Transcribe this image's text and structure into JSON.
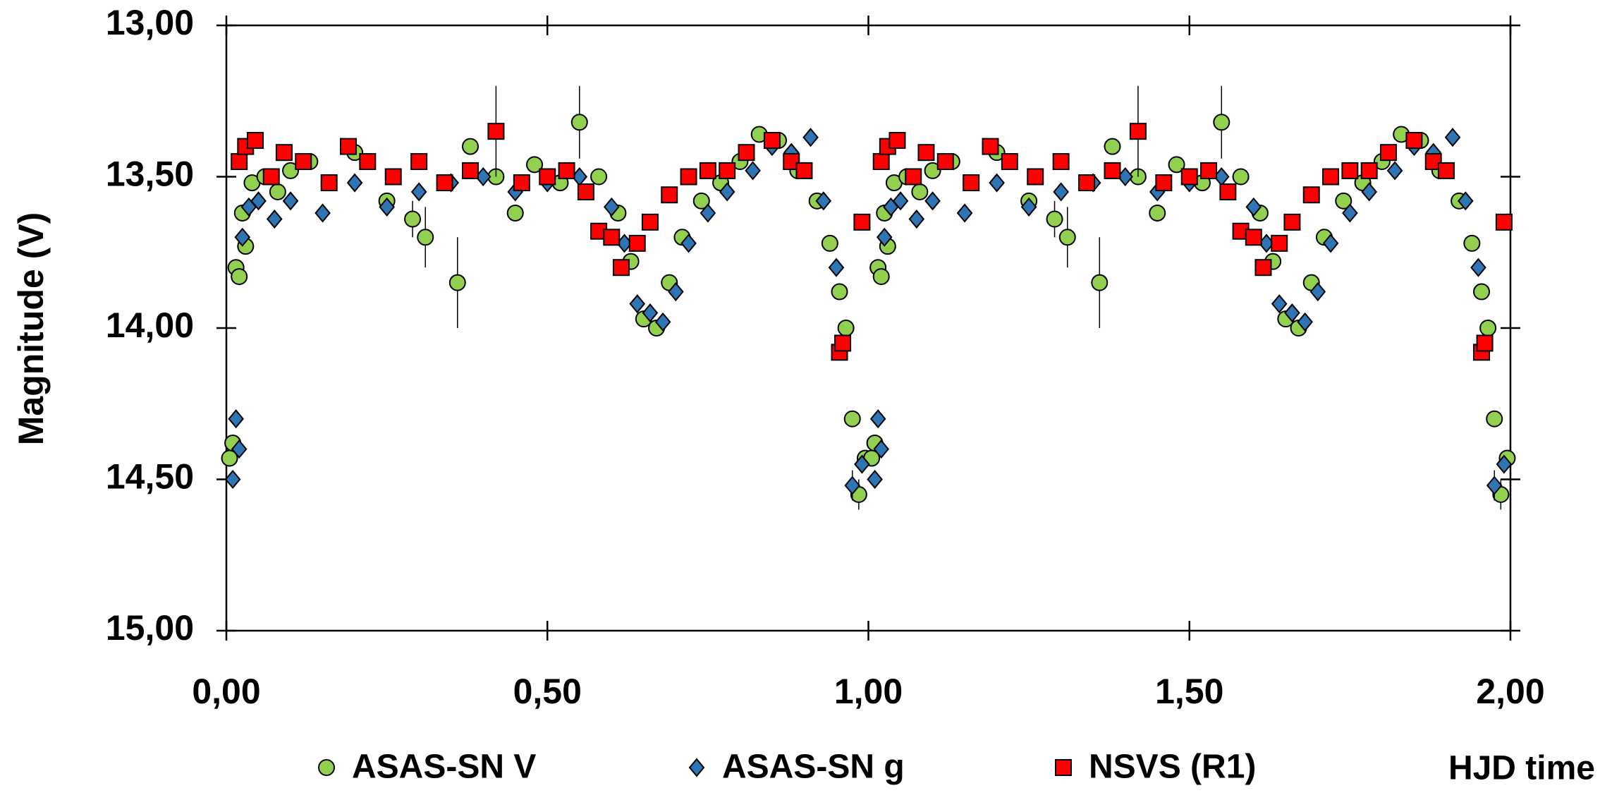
{
  "chart_data": {
    "type": "scatter",
    "ylabel": "Magnitude (V)",
    "xlabel": "HJD time",
    "xlim": [
      0,
      2
    ],
    "ylim": [
      13,
      15
    ],
    "y_inverted": true,
    "xticks": [
      {
        "value": 0,
        "label": "0,00"
      },
      {
        "value": 0.5,
        "label": "0,50"
      },
      {
        "value": 1,
        "label": "1,00"
      },
      {
        "value": 1.5,
        "label": "1,50"
      },
      {
        "value": 2,
        "label": "2,00"
      }
    ],
    "yticks": [
      {
        "value": 13,
        "label": "13,00"
      },
      {
        "value": 13.5,
        "label": "13,50"
      },
      {
        "value": 14,
        "label": "14,00"
      },
      {
        "value": 14.5,
        "label": "14,50"
      },
      {
        "value": 15,
        "label": "15,00"
      }
    ],
    "legend": "bottom",
    "series": [
      {
        "name": "ASAS-SN V",
        "color": "#92d050",
        "marker": "circle",
        "x": [
          0.005,
          0.01,
          0.015,
          0.02,
          0.025,
          0.03,
          0.04,
          0.06,
          0.08,
          0.1,
          0.13,
          0.16,
          0.2,
          0.25,
          0.29,
          0.31,
          0.36,
          0.38,
          0.42,
          0.45,
          0.48,
          0.52,
          0.55,
          0.58,
          0.61,
          0.63,
          0.65,
          0.67,
          0.69,
          0.71,
          0.74,
          0.77,
          0.8,
          0.83,
          0.86,
          0.89,
          0.92,
          0.94,
          0.955,
          0.965,
          0.975,
          0.985,
          0.995,
          1.005,
          1.01,
          1.015,
          1.02,
          1.025,
          1.03,
          1.04,
          1.06,
          1.08,
          1.1,
          1.13,
          1.16,
          1.2,
          1.25,
          1.29,
          1.31,
          1.36,
          1.38,
          1.42,
          1.45,
          1.48,
          1.52,
          1.55,
          1.58,
          1.61,
          1.63,
          1.65,
          1.67,
          1.69,
          1.71,
          1.74,
          1.77,
          1.8,
          1.83,
          1.86,
          1.89,
          1.92,
          1.94,
          1.955,
          1.965,
          1.975,
          1.985,
          1.995
        ],
        "values": [
          14.43,
          14.38,
          13.8,
          13.83,
          13.62,
          13.73,
          13.52,
          13.5,
          13.55,
          13.48,
          13.45,
          13.52,
          13.42,
          13.58,
          13.64,
          13.7,
          13.85,
          13.4,
          13.5,
          13.62,
          13.46,
          13.52,
          13.32,
          13.5,
          13.62,
          13.78,
          13.97,
          14.0,
          13.85,
          13.7,
          13.58,
          13.52,
          13.45,
          13.36,
          13.38,
          13.48,
          13.58,
          13.72,
          13.88,
          14.0,
          14.3,
          14.55,
          14.43,
          14.43,
          14.38,
          13.8,
          13.83,
          13.62,
          13.73,
          13.52,
          13.5,
          13.55,
          13.48,
          13.45,
          13.52,
          13.42,
          13.58,
          13.64,
          13.7,
          13.85,
          13.4,
          13.5,
          13.62,
          13.46,
          13.52,
          13.32,
          13.5,
          13.62,
          13.78,
          13.97,
          14.0,
          13.85,
          13.7,
          13.58,
          13.52,
          13.45,
          13.36,
          13.38,
          13.48,
          13.58,
          13.72,
          13.88,
          14.0,
          14.3,
          14.55,
          14.43
        ],
        "errors": [
          0.02,
          0.02,
          0.02,
          0.02,
          0.02,
          0.02,
          0.02,
          0.02,
          0.02,
          0.02,
          0.02,
          0.02,
          0.02,
          0.02,
          0.06,
          0.1,
          0.15,
          0.02,
          0.02,
          0.02,
          0.02,
          0.02,
          0.12,
          0.02,
          0.02,
          0.02,
          0.02,
          0.02,
          0.02,
          0.02,
          0.02,
          0.02,
          0.02,
          0.02,
          0.02,
          0.02,
          0.02,
          0.02,
          0.02,
          0.02,
          0.02,
          0.05,
          0.02,
          0.02,
          0.02,
          0.02,
          0.02,
          0.02,
          0.02,
          0.02,
          0.02,
          0.02,
          0.02,
          0.02,
          0.02,
          0.02,
          0.02,
          0.06,
          0.1,
          0.15,
          0.02,
          0.02,
          0.02,
          0.02,
          0.02,
          0.12,
          0.02,
          0.02,
          0.02,
          0.02,
          0.02,
          0.02,
          0.02,
          0.02,
          0.02,
          0.02,
          0.02,
          0.02,
          0.02,
          0.02,
          0.02,
          0.02,
          0.02,
          0.02,
          0.05,
          0.02
        ]
      },
      {
        "name": "ASAS-SN g",
        "color": "#2e75b6",
        "marker": "diamond",
        "x": [
          0.01,
          0.015,
          0.02,
          0.025,
          0.035,
          0.05,
          0.075,
          0.1,
          0.15,
          0.2,
          0.25,
          0.3,
          0.35,
          0.4,
          0.45,
          0.5,
          0.55,
          0.6,
          0.62,
          0.64,
          0.66,
          0.68,
          0.7,
          0.72,
          0.75,
          0.78,
          0.82,
          0.85,
          0.88,
          0.91,
          0.93,
          0.95,
          0.975,
          0.99,
          1.01,
          1.015,
          1.02,
          1.025,
          1.035,
          1.05,
          1.075,
          1.1,
          1.15,
          1.2,
          1.25,
          1.3,
          1.35,
          1.4,
          1.45,
          1.5,
          1.55,
          1.6,
          1.62,
          1.64,
          1.66,
          1.68,
          1.7,
          1.72,
          1.75,
          1.78,
          1.82,
          1.85,
          1.88,
          1.91,
          1.93,
          1.95,
          1.975,
          1.99
        ],
        "values": [
          14.5,
          14.3,
          14.4,
          13.7,
          13.6,
          13.58,
          13.64,
          13.58,
          13.62,
          13.52,
          13.6,
          13.55,
          13.52,
          13.5,
          13.55,
          13.52,
          13.5,
          13.6,
          13.72,
          13.92,
          13.95,
          13.98,
          13.88,
          13.72,
          13.62,
          13.55,
          13.48,
          13.4,
          13.42,
          13.37,
          13.58,
          13.8,
          14.52,
          14.45,
          14.5,
          14.3,
          14.4,
          13.7,
          13.6,
          13.58,
          13.64,
          13.58,
          13.62,
          13.52,
          13.6,
          13.55,
          13.52,
          13.5,
          13.55,
          13.52,
          13.5,
          13.6,
          13.72,
          13.92,
          13.95,
          13.98,
          13.88,
          13.72,
          13.62,
          13.55,
          13.48,
          13.4,
          13.42,
          13.37,
          13.58,
          13.8,
          14.52,
          14.45
        ],
        "errors": [
          0.02,
          0.02,
          0.02,
          0.02,
          0.02,
          0.02,
          0.02,
          0.02,
          0.02,
          0.02,
          0.02,
          0.02,
          0.02,
          0.02,
          0.02,
          0.02,
          0.02,
          0.02,
          0.02,
          0.02,
          0.02,
          0.02,
          0.02,
          0.02,
          0.02,
          0.02,
          0.02,
          0.02,
          0.02,
          0.02,
          0.02,
          0.02,
          0.05,
          0.02,
          0.02,
          0.02,
          0.02,
          0.02,
          0.02,
          0.02,
          0.02,
          0.02,
          0.02,
          0.02,
          0.02,
          0.02,
          0.02,
          0.02,
          0.02,
          0.02,
          0.02,
          0.02,
          0.02,
          0.02,
          0.02,
          0.02,
          0.02,
          0.02,
          0.02,
          0.02,
          0.02,
          0.02,
          0.02,
          0.02,
          0.02,
          0.02,
          0.05,
          0.02
        ]
      },
      {
        "name": "NSVS (R1)",
        "color": "#ff0000",
        "marker": "square",
        "x": [
          0.02,
          0.03,
          0.045,
          0.07,
          0.09,
          0.12,
          0.16,
          0.19,
          0.22,
          0.26,
          0.3,
          0.34,
          0.38,
          0.42,
          0.46,
          0.5,
          0.53,
          0.56,
          0.58,
          0.6,
          0.615,
          0.64,
          0.66,
          0.69,
          0.72,
          0.75,
          0.78,
          0.81,
          0.85,
          0.88,
          0.9,
          0.955,
          0.96,
          0.99,
          1.02,
          1.03,
          1.045,
          1.07,
          1.09,
          1.12,
          1.16,
          1.19,
          1.22,
          1.26,
          1.3,
          1.34,
          1.38,
          1.42,
          1.46,
          1.5,
          1.53,
          1.56,
          1.58,
          1.6,
          1.615,
          1.64,
          1.66,
          1.69,
          1.72,
          1.75,
          1.78,
          1.81,
          1.85,
          1.88,
          1.9,
          1.955,
          1.96,
          1.99
        ],
        "values": [
          13.45,
          13.4,
          13.38,
          13.5,
          13.42,
          13.45,
          13.52,
          13.4,
          13.45,
          13.5,
          13.45,
          13.52,
          13.48,
          13.35,
          13.52,
          13.5,
          13.48,
          13.55,
          13.68,
          13.7,
          13.8,
          13.72,
          13.65,
          13.56,
          13.5,
          13.48,
          13.48,
          13.42,
          13.38,
          13.45,
          13.48,
          14.08,
          14.05,
          13.65,
          13.45,
          13.4,
          13.38,
          13.5,
          13.42,
          13.45,
          13.52,
          13.4,
          13.45,
          13.5,
          13.45,
          13.52,
          13.48,
          13.35,
          13.52,
          13.5,
          13.48,
          13.55,
          13.68,
          13.7,
          13.8,
          13.72,
          13.65,
          13.56,
          13.5,
          13.48,
          13.48,
          13.42,
          13.38,
          13.45,
          13.48,
          14.08,
          14.05,
          13.65
        ],
        "errors": [
          0.02,
          0.02,
          0.02,
          0.02,
          0.02,
          0.02,
          0.02,
          0.02,
          0.02,
          0.02,
          0.02,
          0.02,
          0.02,
          0.15,
          0.02,
          0.02,
          0.02,
          0.02,
          0.02,
          0.02,
          0.02,
          0.02,
          0.02,
          0.02,
          0.02,
          0.02,
          0.02,
          0.02,
          0.02,
          0.02,
          0.02,
          0.02,
          0.02,
          0.02,
          0.02,
          0.02,
          0.02,
          0.02,
          0.02,
          0.02,
          0.02,
          0.02,
          0.02,
          0.02,
          0.02,
          0.02,
          0.02,
          0.15,
          0.02,
          0.02,
          0.02,
          0.02,
          0.02,
          0.02,
          0.02,
          0.02,
          0.02,
          0.02,
          0.02,
          0.02,
          0.02,
          0.02,
          0.02,
          0.02,
          0.02,
          0.02,
          0.02,
          0.02
        ]
      }
    ]
  }
}
